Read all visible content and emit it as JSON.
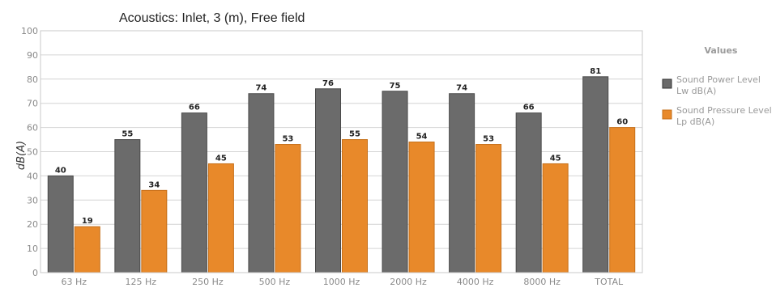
{
  "chart_data": {
    "type": "bar",
    "title": "Acoustics: Inlet, 3 (m), Free field",
    "ylabel": "dB(A)",
    "xlabel": "",
    "ylim": [
      0,
      100
    ],
    "yticks": [
      0,
      10,
      20,
      30,
      40,
      50,
      60,
      70,
      80,
      90,
      100
    ],
    "grid": true,
    "legend_title": "Values",
    "legend_position": "right",
    "categories": [
      "63 Hz",
      "125 Hz",
      "250 Hz",
      "500 Hz",
      "1000 Hz",
      "2000 Hz",
      "4000 Hz",
      "8000 Hz",
      "TOTAL"
    ],
    "series": [
      {
        "name": "Sound Power Level",
        "unit": "Lw dB(A)",
        "color": "#6b6b6b",
        "values": [
          40,
          55,
          66,
          74,
          76,
          75,
          74,
          66,
          81
        ]
      },
      {
        "name": "Sound Pressure Level",
        "unit": "Lp dB(A)",
        "color": "#e8892a",
        "values": [
          19,
          34,
          45,
          53,
          55,
          54,
          53,
          45,
          60
        ]
      }
    ]
  }
}
